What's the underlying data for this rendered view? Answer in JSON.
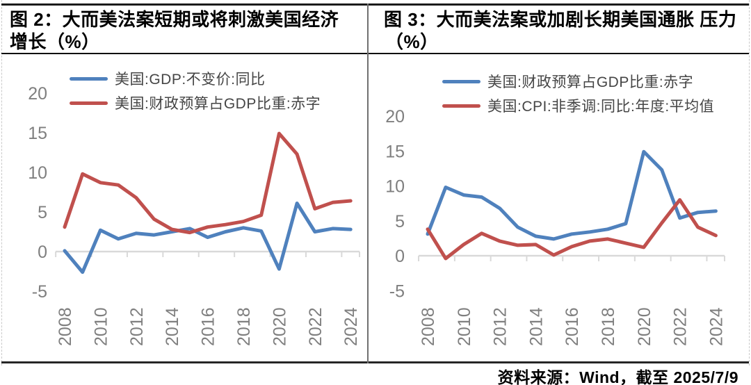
{
  "footer": {
    "source_note": "资料来源：Wind，截至 2025/7/9"
  },
  "colors": {
    "series_blue": "#4f81bd",
    "series_red": "#c0504d",
    "axis_line": "#d9d9d9",
    "axis_text": "#7f7f7f",
    "legend_text": "#454545",
    "title_text": "#000000"
  },
  "chart_data": [
    {
      "type": "line",
      "title_lines": [
        "图 2：大而美法案短期或将刺激美国经济",
        "增长（%）"
      ],
      "x": [
        2008,
        2009,
        2010,
        2011,
        2012,
        2013,
        2014,
        2015,
        2016,
        2017,
        2018,
        2019,
        2020,
        2021,
        2022,
        2023,
        2024
      ],
      "x_tick_labels": [
        "2008",
        "2010",
        "2012",
        "2014",
        "2016",
        "2018",
        "2020",
        "2022",
        "2024"
      ],
      "ylim": [
        -5,
        20
      ],
      "yticks": [
        20,
        15,
        10,
        5,
        0,
        -5
      ],
      "grid": false,
      "legend_position": "top",
      "series": [
        {
          "name": "美国:GDP:不变价:同比",
          "color": "#4f81bd",
          "values": [
            0.1,
            -2.6,
            2.7,
            1.6,
            2.3,
            2.1,
            2.5,
            2.9,
            1.8,
            2.5,
            3.0,
            2.6,
            -2.2,
            6.1,
            2.5,
            2.9,
            2.8
          ]
        },
        {
          "name": "美国:财政预算占GDP比重:赤字",
          "color": "#c0504d",
          "values": [
            3.1,
            9.8,
            8.7,
            8.4,
            6.8,
            4.1,
            2.8,
            2.4,
            3.1,
            3.4,
            3.8,
            4.6,
            14.9,
            12.3,
            5.4,
            6.2,
            6.4
          ]
        }
      ]
    },
    {
      "type": "line",
      "title_lines": [
        "图 3：大而美法案或加剧长期美国通胀 压力",
        "（%）"
      ],
      "x": [
        2008,
        2009,
        2010,
        2011,
        2012,
        2013,
        2014,
        2015,
        2016,
        2017,
        2018,
        2019,
        2020,
        2021,
        2022,
        2023,
        2024
      ],
      "x_tick_labels": [
        "2008",
        "2010",
        "2012",
        "2014",
        "2016",
        "2018",
        "2020",
        "2022",
        "2024"
      ],
      "ylim": [
        -5,
        20
      ],
      "yticks": [
        20,
        15,
        10,
        5,
        0,
        -5
      ],
      "grid": false,
      "legend_position": "top",
      "series": [
        {
          "name": "美国:财政预算占GDP比重:赤字",
          "color": "#4f81bd",
          "values": [
            3.1,
            9.8,
            8.7,
            8.4,
            6.8,
            4.1,
            2.8,
            2.4,
            3.1,
            3.4,
            3.8,
            4.6,
            14.9,
            12.3,
            5.4,
            6.2,
            6.4
          ]
        },
        {
          "name": "美国:CPI:非季调:同比:年度:平均值",
          "color": "#c0504d",
          "values": [
            3.8,
            -0.4,
            1.6,
            3.2,
            2.1,
            1.5,
            1.6,
            0.1,
            1.3,
            2.1,
            2.4,
            1.8,
            1.2,
            4.7,
            8.0,
            4.1,
            2.9
          ]
        }
      ]
    }
  ]
}
